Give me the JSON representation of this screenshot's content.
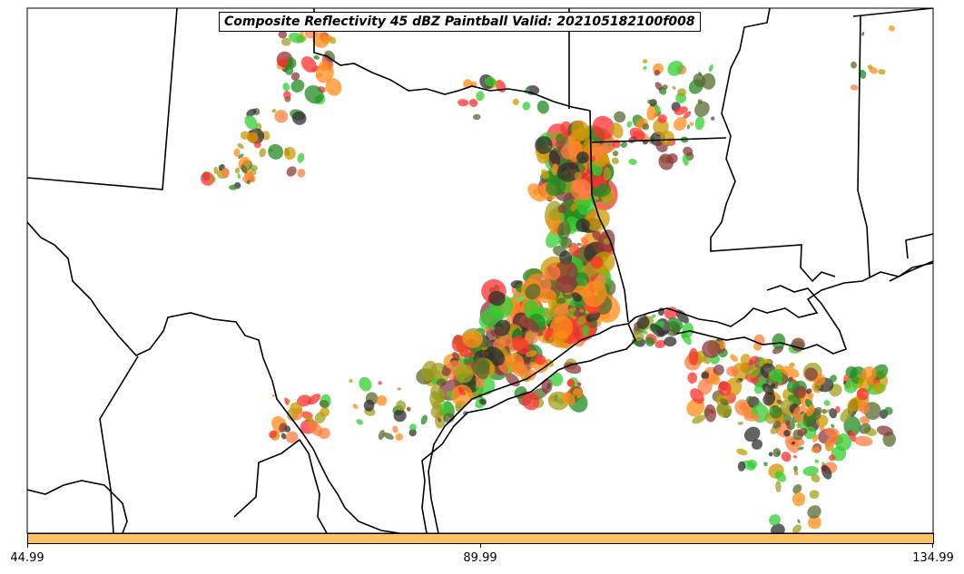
{
  "title": "Composite Reflectivity 45 dBZ Paintball Valid: 202105182100f008",
  "colorbar": {
    "color": "#ffc060",
    "ticks": [
      "44.99",
      "89.99",
      "134.99"
    ]
  },
  "paintball_colors": [
    "#ff3030",
    "#ff8c1a",
    "#32cd32",
    "#556b2f",
    "#a0a020",
    "#2f2f2f",
    "#8b3a3a",
    "#228b22",
    "#ff7f3f",
    "#cc9900"
  ]
}
